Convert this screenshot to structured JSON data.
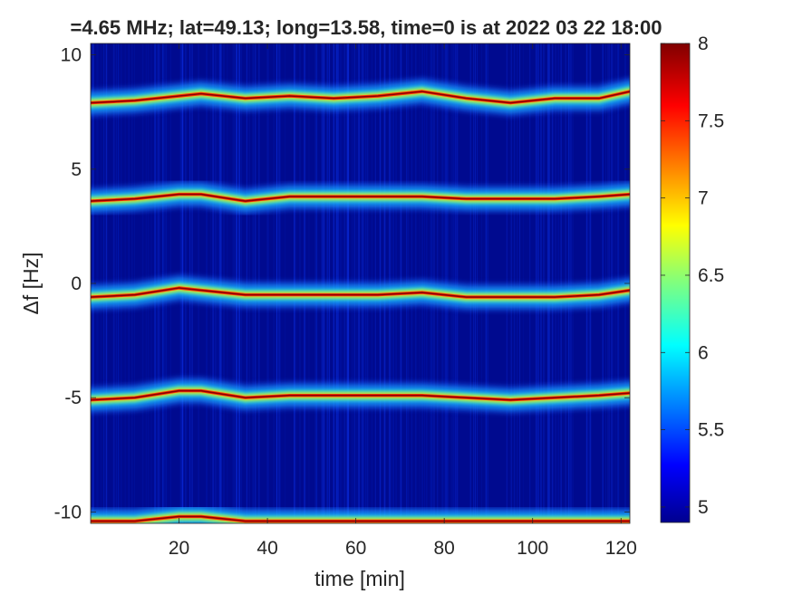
{
  "chart_data": {
    "type": "heatmap",
    "title": "=4.65 MHz;  lat=49.13; long=13.58, time=0 is at 2022 03 22 18:00",
    "xlabel": "time [min]",
    "ylabel": "Δf [Hz]",
    "xlim": [
      0,
      122
    ],
    "ylim": [
      -10.5,
      10.5
    ],
    "xticks": [
      20,
      40,
      60,
      80,
      100,
      120
    ],
    "yticks": [
      10,
      5,
      0,
      -5,
      -10
    ],
    "ytick_labels": [
      "10",
      "5",
      "0",
      "-5",
      "-10"
    ],
    "colorbar": {
      "range": [
        4.9,
        8.0
      ],
      "ticks": [
        8,
        7.5,
        7,
        6.5,
        6,
        5.5,
        5
      ],
      "tick_labels": [
        "8",
        "7.5",
        "7",
        "6.5",
        "6",
        "5.5",
        "5"
      ],
      "colormap": "jet"
    },
    "colors": {
      "background": "#000a8f",
      "ridge": "#8b0000"
    },
    "traces": [
      {
        "center_hz": 8.2,
        "points": [
          [
            0,
            7.9
          ],
          [
            10,
            8.0
          ],
          [
            20,
            8.2
          ],
          [
            25,
            8.3
          ],
          [
            35,
            8.1
          ],
          [
            45,
            8.2
          ],
          [
            55,
            8.1
          ],
          [
            65,
            8.2
          ],
          [
            75,
            8.4
          ],
          [
            85,
            8.1
          ],
          [
            95,
            7.9
          ],
          [
            105,
            8.1
          ],
          [
            115,
            8.1
          ],
          [
            122,
            8.4
          ]
        ]
      },
      {
        "center_hz": 4.0,
        "points": [
          [
            0,
            3.6
          ],
          [
            10,
            3.7
          ],
          [
            20,
            3.9
          ],
          [
            25,
            3.9
          ],
          [
            35,
            3.6
          ],
          [
            45,
            3.8
          ],
          [
            55,
            3.8
          ],
          [
            65,
            3.8
          ],
          [
            75,
            3.8
          ],
          [
            85,
            3.7
          ],
          [
            95,
            3.7
          ],
          [
            105,
            3.7
          ],
          [
            115,
            3.8
          ],
          [
            122,
            3.9
          ]
        ]
      },
      {
        "center_hz": -0.2,
        "points": [
          [
            0,
            -0.6
          ],
          [
            10,
            -0.5
          ],
          [
            20,
            -0.2
          ],
          [
            25,
            -0.3
          ],
          [
            35,
            -0.5
          ],
          [
            45,
            -0.5
          ],
          [
            55,
            -0.5
          ],
          [
            65,
            -0.5
          ],
          [
            75,
            -0.4
          ],
          [
            85,
            -0.6
          ],
          [
            95,
            -0.6
          ],
          [
            105,
            -0.6
          ],
          [
            115,
            -0.5
          ],
          [
            122,
            -0.3
          ]
        ]
      },
      {
        "center_hz": -4.8,
        "points": [
          [
            0,
            -5.1
          ],
          [
            10,
            -5.0
          ],
          [
            20,
            -4.7
          ],
          [
            25,
            -4.7
          ],
          [
            35,
            -5.0
          ],
          [
            45,
            -4.9
          ],
          [
            55,
            -4.9
          ],
          [
            65,
            -4.9
          ],
          [
            75,
            -4.9
          ],
          [
            85,
            -5.0
          ],
          [
            95,
            -5.1
          ],
          [
            105,
            -5.0
          ],
          [
            115,
            -4.9
          ],
          [
            122,
            -4.8
          ]
        ]
      },
      {
        "center_hz": -10.3,
        "points": [
          [
            0,
            -10.4
          ],
          [
            10,
            -10.4
          ],
          [
            20,
            -10.2
          ],
          [
            25,
            -10.2
          ],
          [
            35,
            -10.4
          ],
          [
            45,
            -10.4
          ],
          [
            55,
            -10.4
          ],
          [
            65,
            -10.4
          ],
          [
            75,
            -10.4
          ],
          [
            85,
            -10.4
          ],
          [
            95,
            -10.4
          ],
          [
            105,
            -10.4
          ],
          [
            115,
            -10.4
          ],
          [
            122,
            -10.4
          ]
        ]
      }
    ]
  }
}
